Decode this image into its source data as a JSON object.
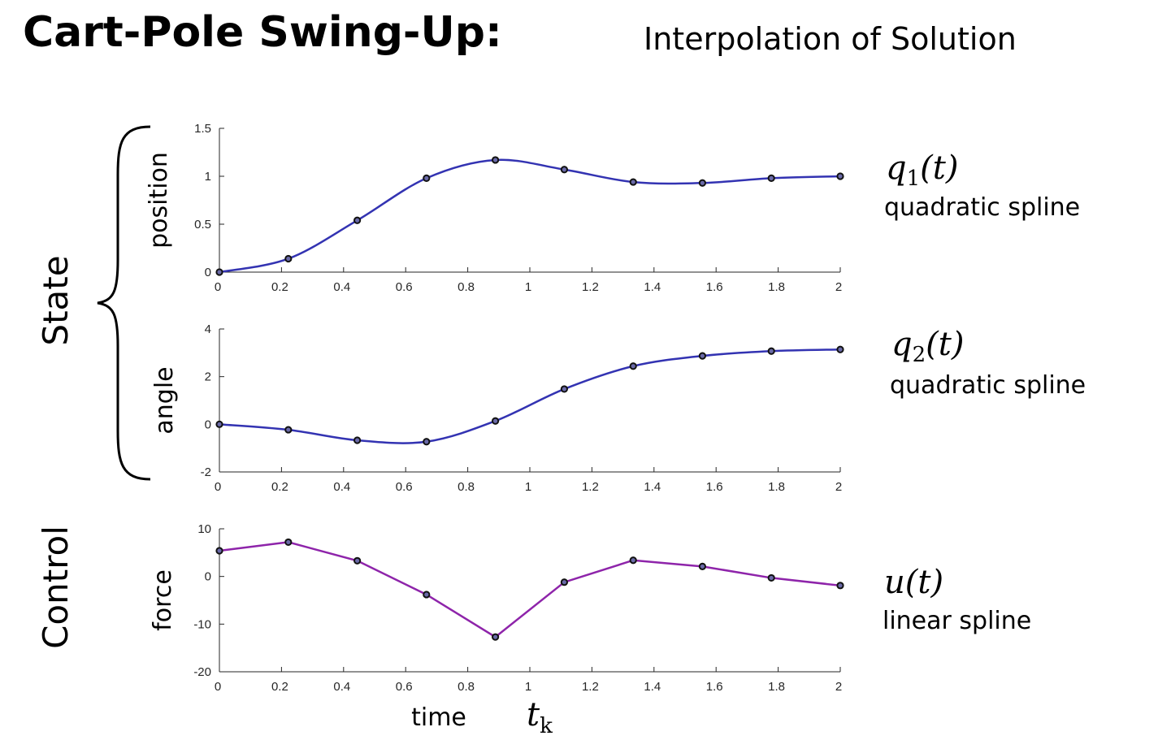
{
  "header": {
    "title": "Cart-Pole Swing-Up:",
    "subtitle": "Interpolation of Solution"
  },
  "groups": {
    "state": "State",
    "control": "Control"
  },
  "x_axis": {
    "label": "time",
    "knot_label": "t",
    "knot_subscript": "k"
  },
  "colors": {
    "state_line": "#3333b2",
    "control_line": "#8e24aa",
    "marker": "#111111"
  },
  "chart_data": [
    {
      "type": "line",
      "ylabel": "position",
      "xlim": [
        0,
        2
      ],
      "ylim": [
        0,
        1.5
      ],
      "xticks": [
        0,
        0.2,
        0.4,
        0.6,
        0.8,
        1,
        1.2,
        1.4,
        1.6,
        1.8,
        2
      ],
      "yticks": [
        0,
        0.5,
        1,
        1.5
      ],
      "xtick_labels": [
        "0",
        "0.2",
        "0.4",
        "0.6",
        "0.8",
        "1",
        "1.2",
        "1.4",
        "1.6",
        "1.8",
        "2"
      ],
      "ytick_labels": [
        "0",
        "0.5",
        "1",
        "1.5"
      ],
      "interpolation": "smooth",
      "x": [
        0,
        0.222,
        0.444,
        0.667,
        0.889,
        1.111,
        1.333,
        1.556,
        1.778,
        2.0
      ],
      "y": [
        0,
        0.14,
        0.54,
        0.98,
        1.17,
        1.07,
        0.94,
        0.93,
        0.98,
        1.0
      ],
      "annotation": {
        "symbol": "q",
        "subscript": "1",
        "arg": "(t)",
        "note": "quadratic spline"
      }
    },
    {
      "type": "line",
      "ylabel": "angle",
      "xlim": [
        0,
        2
      ],
      "ylim": [
        -2,
        4
      ],
      "xticks": [
        0,
        0.2,
        0.4,
        0.6,
        0.8,
        1,
        1.2,
        1.4,
        1.6,
        1.8,
        2
      ],
      "yticks": [
        -2,
        0,
        2,
        4
      ],
      "xtick_labels": [
        "0",
        "0.2",
        "0.4",
        "0.6",
        "0.8",
        "1",
        "1.2",
        "1.4",
        "1.6",
        "1.8",
        "2"
      ],
      "ytick_labels": [
        "-2",
        "0",
        "2",
        "4"
      ],
      "interpolation": "smooth",
      "x": [
        0,
        0.222,
        0.444,
        0.667,
        0.889,
        1.111,
        1.333,
        1.556,
        1.778,
        2.0
      ],
      "y": [
        0,
        -0.23,
        -0.67,
        -0.73,
        0.14,
        1.48,
        2.44,
        2.87,
        3.07,
        3.14
      ],
      "annotation": {
        "symbol": "q",
        "subscript": "2",
        "arg": "(t)",
        "note": "quadratic spline"
      }
    },
    {
      "type": "line",
      "ylabel": "force",
      "xlim": [
        0,
        2
      ],
      "ylim": [
        -20,
        10
      ],
      "xticks": [
        0,
        0.2,
        0.4,
        0.6,
        0.8,
        1,
        1.2,
        1.4,
        1.6,
        1.8,
        2
      ],
      "yticks": [
        -20,
        -10,
        0,
        10
      ],
      "xtick_labels": [
        "0",
        "0.2",
        "0.4",
        "0.6",
        "0.8",
        "1",
        "1.2",
        "1.4",
        "1.6",
        "1.8",
        "2"
      ],
      "ytick_labels": [
        "-20",
        "-10",
        "0",
        "10"
      ],
      "interpolation": "linear",
      "x": [
        0,
        0.222,
        0.444,
        0.667,
        0.889,
        1.111,
        1.333,
        1.556,
        1.778,
        2.0
      ],
      "y": [
        5.4,
        7.2,
        3.3,
        -3.8,
        -12.7,
        -1.2,
        3.4,
        2.1,
        -0.3,
        -1.9
      ],
      "annotation": {
        "symbol": "u",
        "subscript": "",
        "arg": "(t)",
        "note": "linear spline"
      }
    }
  ]
}
